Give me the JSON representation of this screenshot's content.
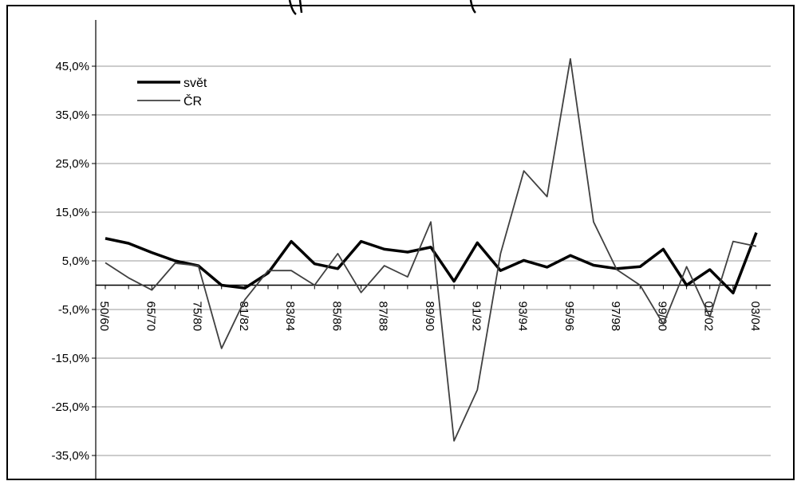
{
  "chart_data": {
    "type": "line",
    "title": "",
    "xlabel": "",
    "ylabel": "",
    "ylim": [
      -35,
      45
    ],
    "y_ticks": [
      45,
      35,
      25,
      15,
      5,
      -5,
      -15,
      -25,
      -35
    ],
    "y_tick_labels": [
      "45,0%",
      "35,0%",
      "25,0%",
      "15,0%",
      "5,0%",
      "-5,0%",
      "-15,0%",
      "-25,0%",
      "-35,0%"
    ],
    "x_tick_labels": [
      "50/60",
      "65/70",
      "75/80",
      "81/82",
      "83/84",
      "85/86",
      "87/88",
      "89/90",
      "91/92",
      "93/94",
      "95/96",
      "97/98",
      "99/00",
      "01/02",
      "03/04"
    ],
    "x_tick_positions": [
      0,
      2,
      4,
      6,
      8,
      10,
      12,
      14,
      16,
      18,
      20,
      22,
      24,
      26,
      28
    ],
    "x_count": 29,
    "grid": "horizontal",
    "legend_position": "top-left",
    "series": [
      {
        "name": "svět",
        "color": "#000000",
        "width": 3.5,
        "values": [
          9.6,
          8.6,
          6.7,
          5.0,
          4.0,
          0.0,
          -0.6,
          2.5,
          9.0,
          4.4,
          3.4,
          9.0,
          7.4,
          6.8,
          7.8,
          0.8,
          8.7,
          3.0,
          5.1,
          3.7,
          6.1,
          4.1,
          3.4,
          3.8,
          7.4,
          0.0,
          3.2,
          -1.6,
          10.8
        ]
      },
      {
        "name": "ČR",
        "color": "#404040",
        "width": 1.8,
        "values": [
          4.6,
          1.5,
          -1.0,
          4.5,
          4.0,
          -13.0,
          -3.0,
          3.0,
          3.0,
          0.0,
          6.5,
          -1.5,
          4.0,
          1.7,
          13.0,
          -32.0,
          -21.5,
          6.5,
          23.5,
          18.2,
          46.5,
          13.0,
          3.2,
          0.0,
          -8.0,
          3.8,
          -6.5,
          9.0,
          8.0
        ]
      }
    ]
  }
}
